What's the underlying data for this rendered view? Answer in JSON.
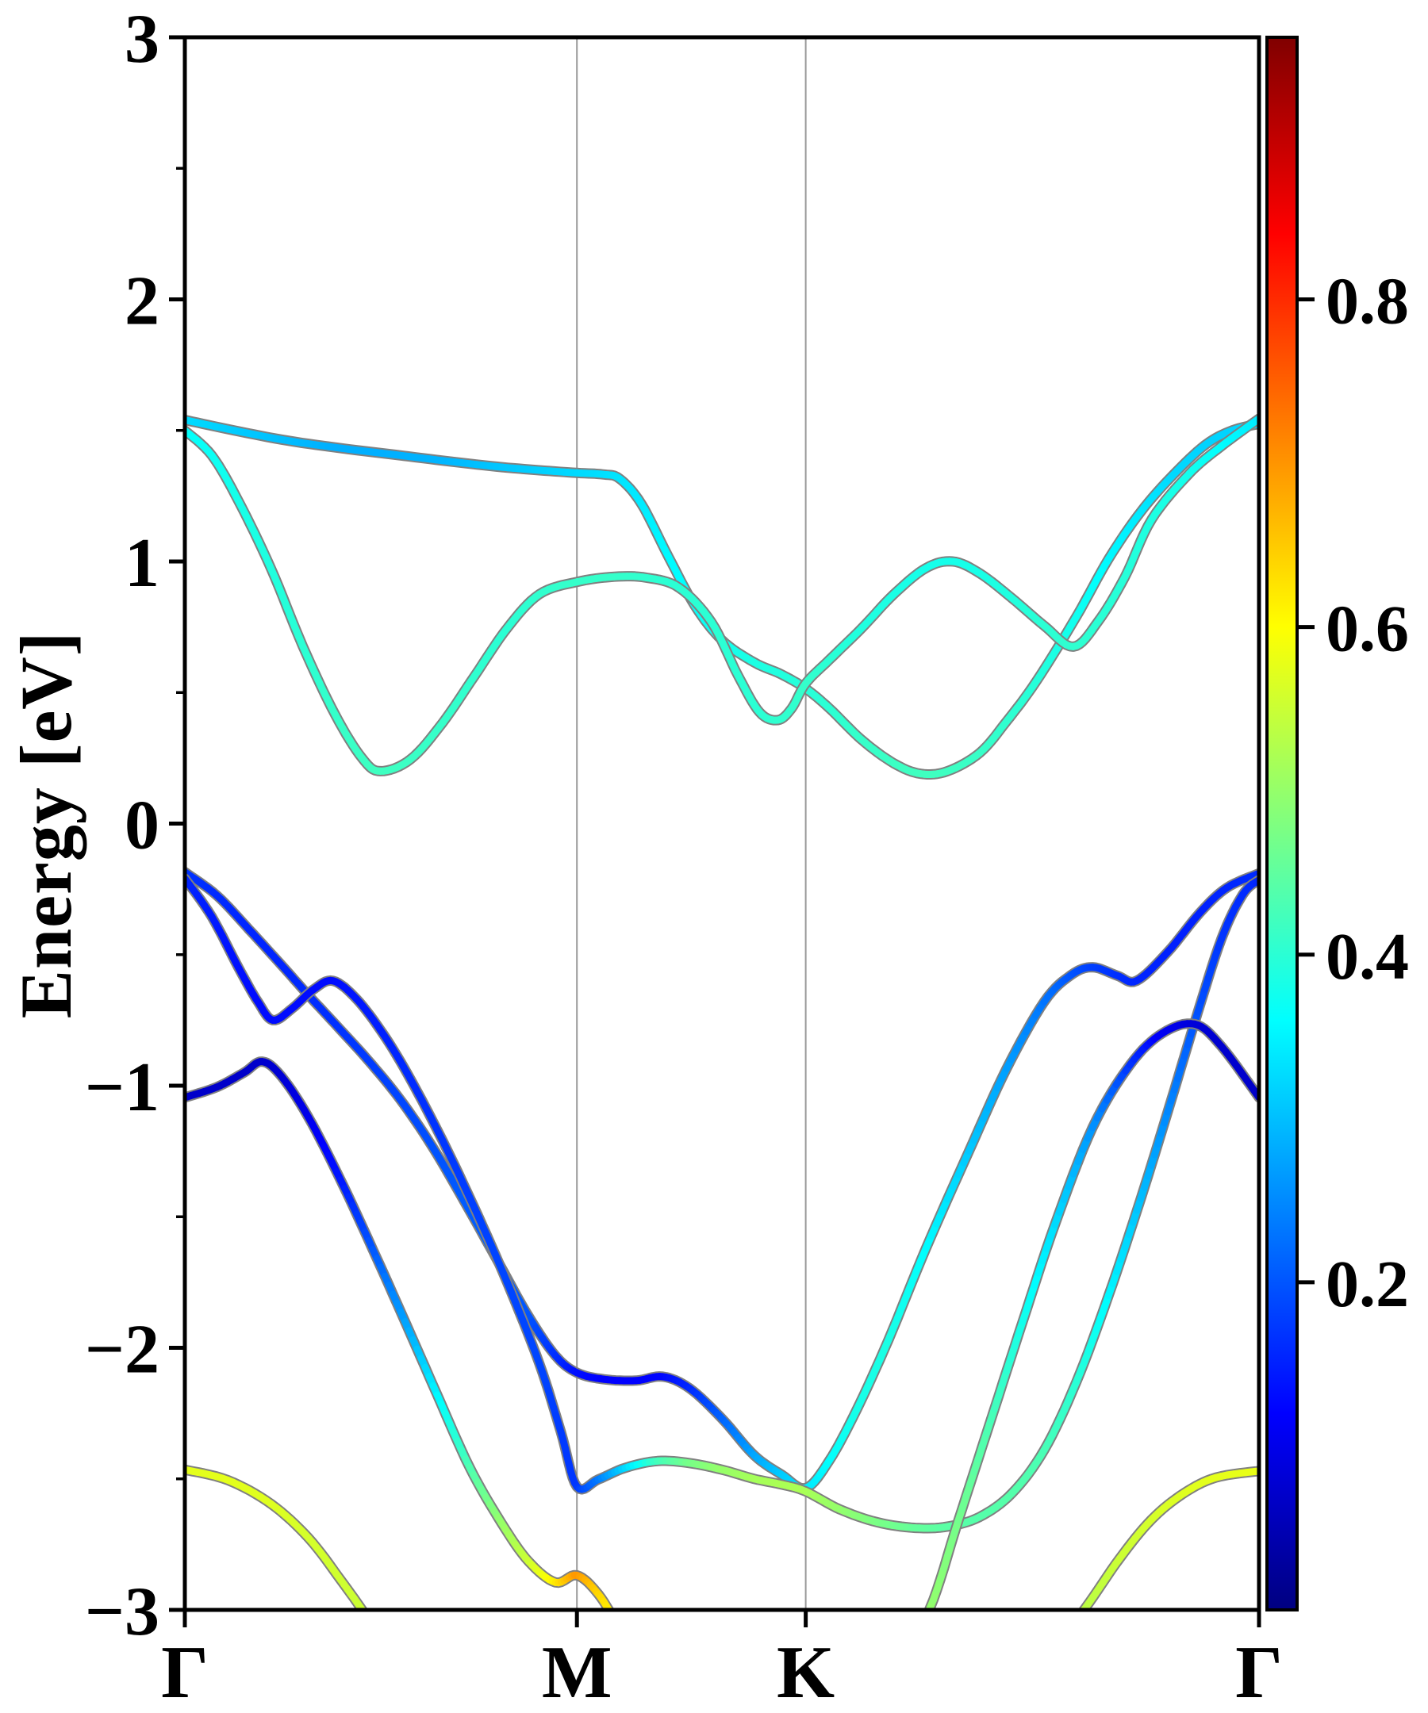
{
  "chart_data": {
    "type": "line",
    "title": "",
    "xlabel": "",
    "ylabel": "Energy [eV]",
    "ylim": [
      -3,
      3
    ],
    "y_major_ticks": [
      3,
      2,
      1,
      0,
      -1,
      -2,
      -3
    ],
    "y_tick_labels": [
      "3",
      "2",
      "1",
      "0",
      "−1",
      "−2",
      "−3"
    ],
    "y_minor_step": 0.5,
    "grid": "vertical-at-kpoints",
    "kpoints": [
      {
        "label": "Γ",
        "f": 0.0
      },
      {
        "label": "M",
        "f": 0.365
      },
      {
        "label": "K",
        "f": 0.578
      },
      {
        "label": "Γ",
        "f": 1.0
      }
    ],
    "colorbar": {
      "colormap": "jet",
      "vmin": 0.0,
      "vmax": 0.96,
      "ticks": [
        0.2,
        0.4,
        0.6,
        0.8
      ],
      "tick_labels": [
        "0.2",
        "0.4",
        "0.6",
        "0.8"
      ],
      "gradient_stops": [
        {
          "off": 0.0,
          "color": "#000080"
        },
        {
          "off": 0.125,
          "color": "#0000ff"
        },
        {
          "off": 0.375,
          "color": "#00ffff"
        },
        {
          "off": 0.625,
          "color": "#ffff00"
        },
        {
          "off": 0.875,
          "color": "#ff0000"
        },
        {
          "off": 1.0,
          "color": "#800000"
        }
      ]
    },
    "colors": {
      "background": "#ffffff",
      "spine": "#000000",
      "gridline": "#999999",
      "band_outline": "#808080"
    },
    "bands": [
      {
        "name": "conduction-band-1",
        "points": [
          [
            0,
            1.54,
            0.33
          ],
          [
            0.04,
            1.505,
            0.315
          ],
          [
            0.09,
            1.465,
            0.3
          ],
          [
            0.14,
            1.435,
            0.285
          ],
          [
            0.19,
            1.41,
            0.285
          ],
          [
            0.24,
            1.385,
            0.29
          ],
          [
            0.29,
            1.362,
            0.305
          ],
          [
            0.33,
            1.348,
            0.315
          ],
          [
            0.365,
            1.338,
            0.325
          ],
          [
            0.39,
            1.332,
            0.33
          ],
          [
            0.405,
            1.315,
            0.335
          ],
          [
            0.425,
            1.22,
            0.34
          ],
          [
            0.45,
            1.02,
            0.355
          ],
          [
            0.475,
            0.83,
            0.365
          ],
          [
            0.5,
            0.7,
            0.375
          ],
          [
            0.53,
            0.615,
            0.385
          ],
          [
            0.555,
            0.57,
            0.39
          ],
          [
            0.578,
            0.515,
            0.395
          ],
          [
            0.6,
            0.44,
            0.4
          ],
          [
            0.63,
            0.32,
            0.41
          ],
          [
            0.66,
            0.23,
            0.415
          ],
          [
            0.685,
            0.19,
            0.42
          ],
          [
            0.71,
            0.2,
            0.418
          ],
          [
            0.74,
            0.27,
            0.412
          ],
          [
            0.765,
            0.39,
            0.405
          ],
          [
            0.793,
            0.545,
            0.395
          ],
          [
            0.83,
            0.79,
            0.375
          ],
          [
            0.86,
            1.01,
            0.355
          ],
          [
            0.89,
            1.19,
            0.34
          ],
          [
            0.92,
            1.33,
            0.325
          ],
          [
            0.95,
            1.445,
            0.318
          ],
          [
            0.975,
            1.5,
            0.32
          ],
          [
            1,
            1.525,
            0.325
          ]
        ]
      },
      {
        "name": "conduction-band-2",
        "points": [
          [
            0,
            1.5,
            0.36
          ],
          [
            0.025,
            1.405,
            0.37
          ],
          [
            0.05,
            1.23,
            0.38
          ],
          [
            0.08,
            0.975,
            0.39
          ],
          [
            0.11,
            0.675,
            0.4
          ],
          [
            0.14,
            0.415,
            0.41
          ],
          [
            0.165,
            0.25,
            0.415
          ],
          [
            0.182,
            0.2,
            0.42
          ],
          [
            0.21,
            0.245,
            0.415
          ],
          [
            0.24,
            0.385,
            0.41
          ],
          [
            0.27,
            0.565,
            0.405
          ],
          [
            0.3,
            0.745,
            0.4
          ],
          [
            0.33,
            0.875,
            0.405
          ],
          [
            0.365,
            0.922,
            0.41
          ],
          [
            0.4,
            0.942,
            0.41
          ],
          [
            0.43,
            0.938,
            0.405
          ],
          [
            0.46,
            0.9,
            0.4
          ],
          [
            0.49,
            0.77,
            0.4
          ],
          [
            0.515,
            0.565,
            0.4
          ],
          [
            0.535,
            0.425,
            0.4
          ],
          [
            0.552,
            0.395,
            0.405
          ],
          [
            0.565,
            0.44,
            0.405
          ],
          [
            0.578,
            0.535,
            0.41
          ],
          [
            0.6,
            0.625,
            0.4
          ],
          [
            0.63,
            0.745,
            0.39
          ],
          [
            0.66,
            0.875,
            0.385
          ],
          [
            0.69,
            0.975,
            0.38
          ],
          [
            0.715,
            1.0,
            0.38
          ],
          [
            0.74,
            0.955,
            0.382
          ],
          [
            0.77,
            0.86,
            0.39
          ],
          [
            0.8,
            0.755,
            0.4
          ],
          [
            0.827,
            0.675,
            0.405
          ],
          [
            0.85,
            0.77,
            0.4
          ],
          [
            0.875,
            0.94,
            0.395
          ],
          [
            0.9,
            1.16,
            0.388
          ],
          [
            0.935,
            1.335,
            0.378
          ],
          [
            0.965,
            1.44,
            0.36
          ],
          [
            1,
            1.545,
            0.34
          ]
        ]
      },
      {
        "name": "valence-band-1",
        "points": [
          [
            0,
            -0.185,
            0.17
          ],
          [
            0.03,
            -0.275,
            0.16
          ],
          [
            0.06,
            -0.405,
            0.155
          ],
          [
            0.09,
            -0.54,
            0.155
          ],
          [
            0.114,
            -0.65,
            0.16
          ],
          [
            0.14,
            -0.765,
            0.165
          ],
          [
            0.17,
            -0.9,
            0.175
          ],
          [
            0.2,
            -1.05,
            0.185
          ],
          [
            0.23,
            -1.23,
            0.195
          ],
          [
            0.26,
            -1.44,
            0.205
          ],
          [
            0.29,
            -1.66,
            0.21
          ],
          [
            0.32,
            -1.88,
            0.2
          ],
          [
            0.345,
            -2.03,
            0.165
          ],
          [
            0.365,
            -2.095,
            0.135
          ],
          [
            0.39,
            -2.12,
            0.12
          ],
          [
            0.42,
            -2.125,
            0.12
          ],
          [
            0.445,
            -2.11,
            0.125
          ],
          [
            0.47,
            -2.155,
            0.155
          ],
          [
            0.5,
            -2.27,
            0.21
          ],
          [
            0.53,
            -2.41,
            0.275
          ],
          [
            0.556,
            -2.485,
            0.31
          ],
          [
            0.578,
            -2.535,
            0.335
          ],
          [
            0.6,
            -2.43,
            0.36
          ],
          [
            0.625,
            -2.24,
            0.38
          ],
          [
            0.655,
            -1.97,
            0.385
          ],
          [
            0.69,
            -1.62,
            0.36
          ],
          [
            0.73,
            -1.25,
            0.31
          ],
          [
            0.765,
            -0.935,
            0.27
          ],
          [
            0.8,
            -0.68,
            0.23
          ],
          [
            0.825,
            -0.578,
            0.2
          ],
          [
            0.845,
            -0.548,
            0.18
          ],
          [
            0.868,
            -0.58,
            0.165
          ],
          [
            0.886,
            -0.6,
            0.155
          ],
          [
            0.915,
            -0.49,
            0.15
          ],
          [
            0.945,
            -0.34,
            0.15
          ],
          [
            0.97,
            -0.245,
            0.155
          ],
          [
            1,
            -0.19,
            0.16
          ]
        ]
      },
      {
        "name": "valence-band-2",
        "points": [
          [
            0,
            -0.21,
            0.155
          ],
          [
            0.025,
            -0.355,
            0.145
          ],
          [
            0.05,
            -0.55,
            0.135
          ],
          [
            0.068,
            -0.68,
            0.13
          ],
          [
            0.082,
            -0.75,
            0.13
          ],
          [
            0.1,
            -0.705,
            0.13
          ],
          [
            0.12,
            -0.632,
            0.13
          ],
          [
            0.138,
            -0.6,
            0.13
          ],
          [
            0.16,
            -0.67,
            0.14
          ],
          [
            0.185,
            -0.805,
            0.15
          ],
          [
            0.21,
            -0.975,
            0.16
          ],
          [
            0.24,
            -1.21,
            0.17
          ],
          [
            0.27,
            -1.47,
            0.18
          ],
          [
            0.3,
            -1.75,
            0.185
          ],
          [
            0.33,
            -2.06,
            0.185
          ],
          [
            0.35,
            -2.32,
            0.175
          ],
          [
            0.365,
            -2.53,
            0.17
          ],
          [
            0.385,
            -2.502,
            0.23
          ],
          [
            0.41,
            -2.458,
            0.32
          ],
          [
            0.44,
            -2.432,
            0.42
          ],
          [
            0.47,
            -2.44,
            0.47
          ],
          [
            0.5,
            -2.465,
            0.5
          ],
          [
            0.53,
            -2.5,
            0.515
          ],
          [
            0.556,
            -2.522,
            0.52
          ],
          [
            0.578,
            -2.548,
            0.52
          ],
          [
            0.61,
            -2.617,
            0.5
          ],
          [
            0.645,
            -2.666,
            0.475
          ],
          [
            0.68,
            -2.687,
            0.455
          ],
          [
            0.71,
            -2.682,
            0.445
          ],
          [
            0.74,
            -2.645,
            0.44
          ],
          [
            0.77,
            -2.555,
            0.44
          ],
          [
            0.8,
            -2.39,
            0.43
          ],
          [
            0.83,
            -2.13,
            0.4
          ],
          [
            0.86,
            -1.8,
            0.355
          ],
          [
            0.89,
            -1.43,
            0.3
          ],
          [
            0.915,
            -1.1,
            0.25
          ],
          [
            0.94,
            -0.76,
            0.2
          ],
          [
            0.965,
            -0.44,
            0.17
          ],
          [
            0.985,
            -0.27,
            0.16
          ],
          [
            1,
            -0.215,
            0.155
          ]
        ]
      },
      {
        "name": "valence-band-3-left",
        "points": [
          [
            0,
            -1.045,
            0.07
          ],
          [
            0.03,
            -1.005,
            0.07
          ],
          [
            0.055,
            -0.95,
            0.07
          ],
          [
            0.072,
            -0.908,
            0.072
          ],
          [
            0.09,
            -0.965,
            0.08
          ],
          [
            0.115,
            -1.12,
            0.1
          ],
          [
            0.145,
            -1.36,
            0.14
          ],
          [
            0.175,
            -1.625,
            0.2
          ],
          [
            0.205,
            -1.9,
            0.27
          ],
          [
            0.235,
            -2.18,
            0.35
          ],
          [
            0.265,
            -2.455,
            0.43
          ],
          [
            0.295,
            -2.67,
            0.5
          ],
          [
            0.32,
            -2.815,
            0.55
          ],
          [
            0.345,
            -2.895,
            0.615
          ],
          [
            0.365,
            -2.868,
            0.7
          ],
          [
            0.385,
            -2.94,
            0.64
          ],
          [
            0.405,
            -3.07,
            0.6
          ],
          [
            0.43,
            -3.22,
            0.57
          ]
        ]
      },
      {
        "name": "valence-band-3-right",
        "points": [
          [
            0.66,
            -3.22,
            0.53
          ],
          [
            0.693,
            -3.0,
            0.5
          ],
          [
            0.72,
            -2.66,
            0.47
          ],
          [
            0.75,
            -2.28,
            0.43
          ],
          [
            0.78,
            -1.9,
            0.38
          ],
          [
            0.81,
            -1.53,
            0.33
          ],
          [
            0.845,
            -1.16,
            0.26
          ],
          [
            0.88,
            -0.92,
            0.17
          ],
          [
            0.91,
            -0.8,
            0.11
          ],
          [
            0.94,
            -0.765,
            0.085
          ],
          [
            0.965,
            -0.85,
            0.075
          ],
          [
            1,
            -1.045,
            0.07
          ]
        ]
      },
      {
        "name": "valence-band-4-left",
        "points": [
          [
            0,
            -2.465,
            0.575
          ],
          [
            0.04,
            -2.505,
            0.575
          ],
          [
            0.08,
            -2.595,
            0.57
          ],
          [
            0.115,
            -2.725,
            0.56
          ],
          [
            0.145,
            -2.885,
            0.555
          ],
          [
            0.17,
            -3.03,
            0.55
          ],
          [
            0.2,
            -3.22,
            0.55
          ]
        ]
      },
      {
        "name": "valence-band-4-right",
        "points": [
          [
            0.795,
            -3.22,
            0.52
          ],
          [
            0.837,
            -3.0,
            0.535
          ],
          [
            0.87,
            -2.805,
            0.55
          ],
          [
            0.9,
            -2.655,
            0.56
          ],
          [
            0.93,
            -2.555,
            0.57
          ],
          [
            0.96,
            -2.495,
            0.575
          ],
          [
            1,
            -2.47,
            0.58
          ]
        ]
      }
    ]
  }
}
